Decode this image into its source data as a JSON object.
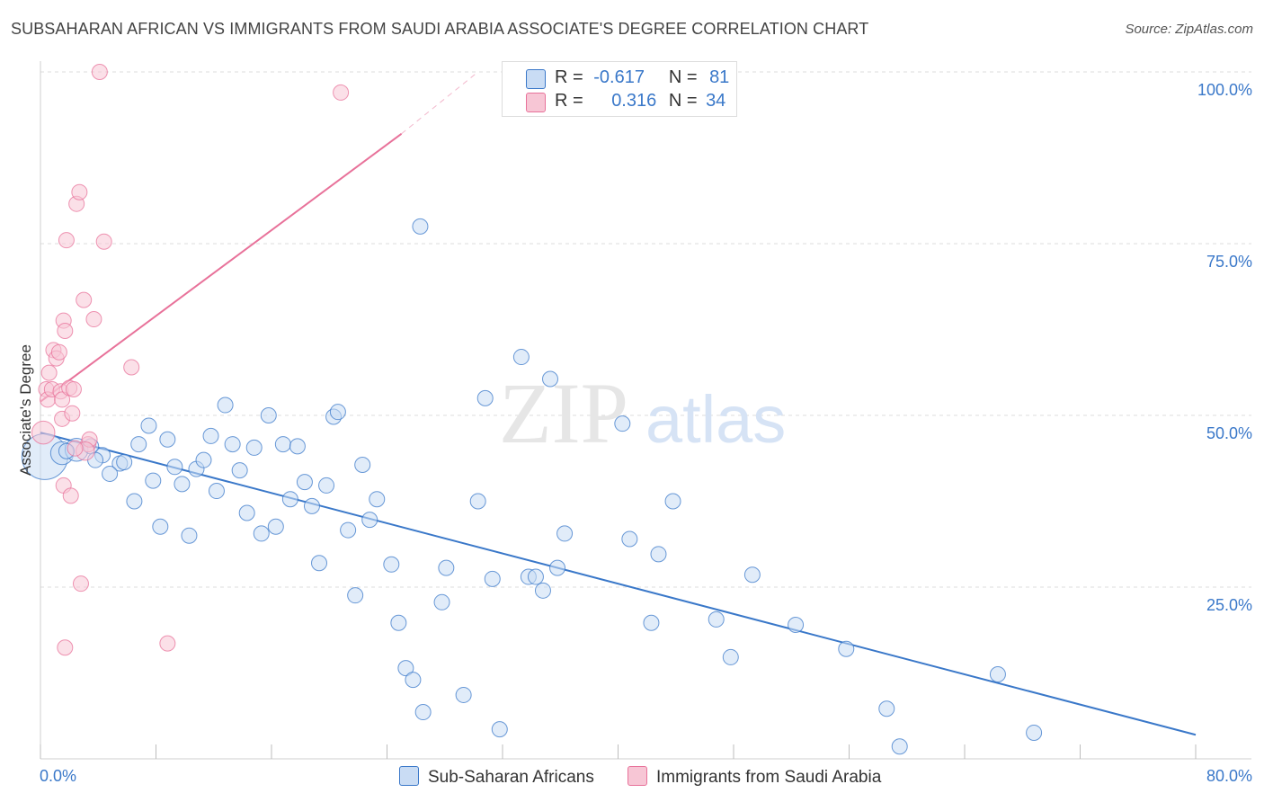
{
  "title": "SUBSAHARAN AFRICAN VS IMMIGRANTS FROM SAUDI ARABIA ASSOCIATE'S DEGREE CORRELATION CHART",
  "source": "Source: ZipAtlas.com",
  "watermark": {
    "zip": "ZIP",
    "atlas": "atlas"
  },
  "colors": {
    "blue": "#3a78c9",
    "blue_fill": "#c9dcf4",
    "pink": "#e8729a",
    "pink_fill": "#f7c6d5",
    "axis_label": "#3a78c9",
    "grid": "#dcdcdc"
  },
  "legend": {
    "rows": [
      {
        "r_label": "R =",
        "r_value": "-0.617",
        "n_label": "N =",
        "n_value": "81"
      },
      {
        "r_label": "R =",
        "r_value": "0.316",
        "n_label": "N =",
        "n_value": "34"
      }
    ]
  },
  "bottom_legend": [
    {
      "label": "Sub-Saharan Africans"
    },
    {
      "label": "Immigrants from Saudi Arabia"
    }
  ],
  "chart_data": {
    "type": "scatter",
    "xlabel": "",
    "ylabel": "Associate's Degree",
    "xlim": [
      0,
      80
    ],
    "ylim": [
      0,
      100
    ],
    "x_tick_labels": [
      "0.0%",
      "80.0%"
    ],
    "y_tick_labels": [
      "25.0%",
      "50.0%",
      "75.0%",
      "100.0%"
    ],
    "y_ticks": [
      25,
      50,
      75,
      100
    ],
    "series": [
      {
        "name": "Sub-Saharan Africans",
        "color": "blue",
        "trend": {
          "x": [
            0,
            80
          ],
          "y": [
            47.5,
            3.5
          ]
        },
        "points": [
          [
            0.3,
            44,
            3
          ],
          [
            1.5,
            44.5,
            1.5
          ],
          [
            2.5,
            45,
            1.5
          ],
          [
            1.8,
            44.8,
            1
          ],
          [
            3.5,
            45.5,
            1
          ],
          [
            4.3,
            44.2,
            1
          ],
          [
            3.8,
            43.5,
            1
          ],
          [
            5.5,
            43,
            1
          ],
          [
            4.8,
            41.5,
            1
          ],
          [
            5.8,
            43.2,
            1
          ],
          [
            6.5,
            37.5,
            1
          ],
          [
            6.8,
            45.8,
            1
          ],
          [
            7.5,
            48.5,
            1
          ],
          [
            7.8,
            40.5,
            1
          ],
          [
            8.3,
            33.8,
            1
          ],
          [
            8.8,
            46.5,
            1
          ],
          [
            9.3,
            42.5,
            1
          ],
          [
            9.8,
            40,
            1
          ],
          [
            10.3,
            32.5,
            1
          ],
          [
            10.8,
            42.2,
            1
          ],
          [
            11.3,
            43.5,
            1
          ],
          [
            11.8,
            47,
            1
          ],
          [
            12.2,
            39,
            1
          ],
          [
            12.8,
            51.5,
            1
          ],
          [
            13.3,
            45.8,
            1
          ],
          [
            13.8,
            42,
            1
          ],
          [
            14.3,
            35.8,
            1
          ],
          [
            14.8,
            45.3,
            1
          ],
          [
            15.3,
            32.8,
            1
          ],
          [
            15.8,
            50,
            1
          ],
          [
            16.3,
            33.8,
            1
          ],
          [
            16.8,
            45.8,
            1
          ],
          [
            17.3,
            37.8,
            1
          ],
          [
            17.8,
            45.5,
            1
          ],
          [
            18.3,
            40.3,
            1
          ],
          [
            18.8,
            36.8,
            1
          ],
          [
            19.3,
            28.5,
            1
          ],
          [
            19.8,
            39.8,
            1
          ],
          [
            20.3,
            49.8,
            1
          ],
          [
            20.6,
            50.5,
            1
          ],
          [
            21.3,
            33.3,
            1
          ],
          [
            21.8,
            23.8,
            1
          ],
          [
            22.3,
            42.8,
            1
          ],
          [
            22.8,
            34.8,
            1
          ],
          [
            23.3,
            37.8,
            1
          ],
          [
            24.3,
            28.3,
            1
          ],
          [
            24.8,
            19.8,
            1
          ],
          [
            25.3,
            13.2,
            1
          ],
          [
            25.8,
            11.5,
            1
          ],
          [
            26.3,
            77.5,
            1
          ],
          [
            26.5,
            6.8,
            1
          ],
          [
            27.8,
            22.8,
            1
          ],
          [
            28.1,
            27.8,
            1
          ],
          [
            29.3,
            9.3,
            1
          ],
          [
            30.3,
            37.5,
            1
          ],
          [
            30.8,
            52.5,
            1
          ],
          [
            31.3,
            26.2,
            1
          ],
          [
            31.8,
            4.3,
            1
          ],
          [
            33.3,
            58.5,
            1
          ],
          [
            33.8,
            26.5,
            1
          ],
          [
            34.3,
            26.5,
            1
          ],
          [
            34.8,
            24.5,
            1
          ],
          [
            35.3,
            55.3,
            1
          ],
          [
            35.8,
            27.8,
            1
          ],
          [
            36.3,
            32.8,
            1
          ],
          [
            40.3,
            48.8,
            1
          ],
          [
            40.8,
            32,
            1
          ],
          [
            42.3,
            19.8,
            1
          ],
          [
            42.8,
            29.8,
            1
          ],
          [
            43.8,
            37.5,
            1
          ],
          [
            46.8,
            20.3,
            1
          ],
          [
            47.8,
            14.8,
            1
          ],
          [
            49.3,
            26.8,
            1
          ],
          [
            52.3,
            19.5,
            1
          ],
          [
            55.8,
            16,
            1
          ],
          [
            58.6,
            7.3,
            1
          ],
          [
            59.5,
            1.8,
            1
          ],
          [
            66.3,
            12.3,
            1
          ],
          [
            68.8,
            3.8,
            1
          ]
        ]
      },
      {
        "name": "Immigrants from Saudi Arabia",
        "color": "pink",
        "trend": {
          "x": [
            0,
            25
          ],
          "y": [
            52,
            91
          ],
          "dash_to": {
            "x": 30.3,
            "y": 100
          }
        },
        "points": [
          [
            0.2,
            47.5,
            1.5
          ],
          [
            0.4,
            53.8,
            1
          ],
          [
            0.5,
            52.3,
            1
          ],
          [
            0.6,
            56.2,
            1
          ],
          [
            0.8,
            53.8,
            1
          ],
          [
            0.9,
            59.5,
            1
          ],
          [
            1.1,
            58.3,
            1
          ],
          [
            1.3,
            59.2,
            1
          ],
          [
            1.4,
            53.5,
            1
          ],
          [
            1.5,
            52.3,
            1
          ],
          [
            1.5,
            49.5,
            1
          ],
          [
            1.6,
            63.8,
            1
          ],
          [
            1.7,
            62.3,
            1
          ],
          [
            1.6,
            39.8,
            1
          ],
          [
            1.7,
            16.2,
            1
          ],
          [
            1.8,
            75.5,
            1
          ],
          [
            2.0,
            54,
            1
          ],
          [
            2.1,
            38.3,
            1
          ],
          [
            2.2,
            50.3,
            1
          ],
          [
            2.3,
            53.8,
            1
          ],
          [
            2.5,
            80.8,
            1
          ],
          [
            2.7,
            82.5,
            1
          ],
          [
            2.8,
            25.5,
            1
          ],
          [
            3.0,
            66.8,
            1
          ],
          [
            3.3,
            45.8,
            1
          ],
          [
            3.4,
            46.5,
            1
          ],
          [
            3.7,
            64,
            1
          ],
          [
            4.1,
            100,
            1
          ],
          [
            4.4,
            75.3,
            1
          ],
          [
            6.3,
            57,
            1
          ],
          [
            8.8,
            16.8,
            1
          ],
          [
            20.8,
            97,
            1
          ],
          [
            3.1,
            44.8,
            1.2
          ],
          [
            2.4,
            45.2,
            1
          ]
        ]
      }
    ]
  }
}
